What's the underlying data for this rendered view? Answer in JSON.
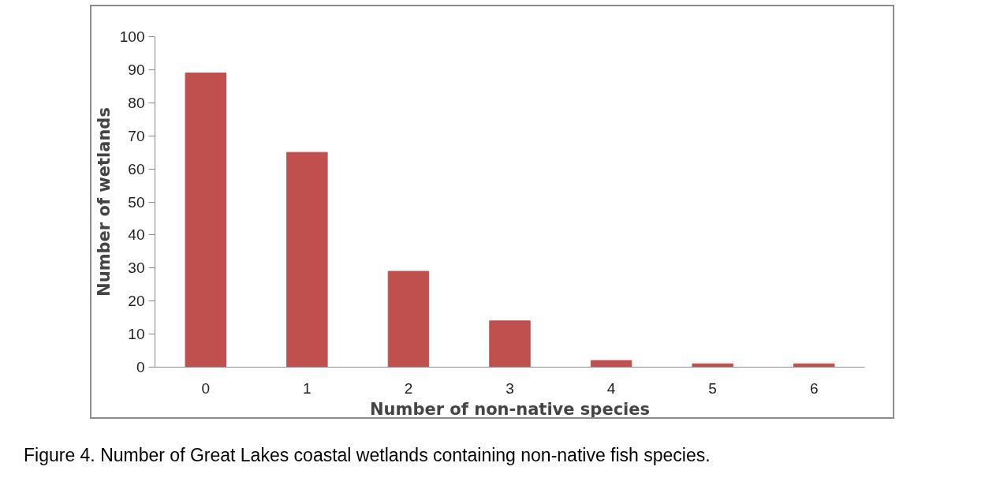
{
  "chart_data": {
    "type": "bar",
    "xlabel": "Number of non-native species",
    "ylabel": "Number of wetlands",
    "categories": [
      "0",
      "1",
      "2",
      "3",
      "4",
      "5",
      "6"
    ],
    "values": [
      89,
      65,
      29,
      14,
      2,
      1,
      1
    ],
    "color": "#c0504d",
    "ylim": [
      0,
      100
    ],
    "yticks": [
      0,
      10,
      20,
      30,
      40,
      50,
      60,
      70,
      80,
      90,
      100
    ],
    "grid": false,
    "annotations": [
      "Figure 4. Number of Great Lakes coastal wetlands containing non-native fish species."
    ]
  }
}
